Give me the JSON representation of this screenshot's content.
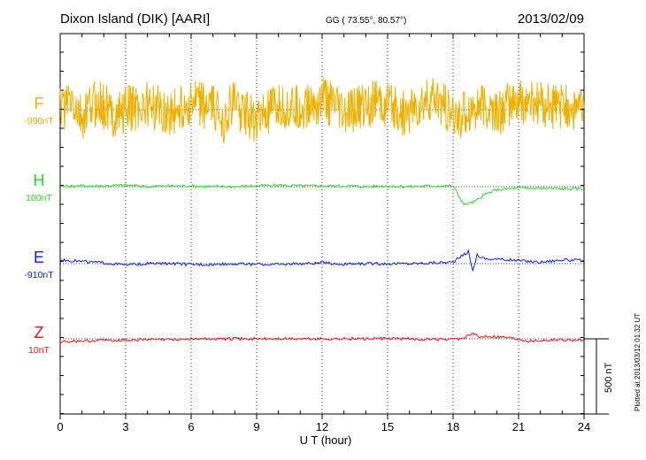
{
  "header": {
    "station": "Dixon Island (DIK)  [AARI]",
    "coords": "GG ( 73.55°,  80.57°)",
    "date": "2013/02/09"
  },
  "side_note": "Plotted at 2013/03/12 01:32 UT",
  "chart_data": {
    "type": "line",
    "title": "Dixon Island (DIK)  [AARI]",
    "xlabel": "U T (hour)",
    "xlim": [
      0,
      24
    ],
    "xticks": [
      "0",
      "3",
      "6",
      "9",
      "12",
      "15",
      "18",
      "21",
      "24"
    ],
    "grid": "dotted vertical lines every 3 hours; dotted baseline per component",
    "scale_bar": {
      "label": "500 nT",
      "value_nT": 500
    },
    "series": [
      {
        "name": "F",
        "baseline_label": "-990nT",
        "color": "#f0b000",
        "x": [
          0,
          0.5,
          1,
          1.5,
          2,
          2.5,
          3,
          4,
          5,
          6,
          7,
          7.5,
          8,
          8.5,
          9,
          10,
          11,
          12,
          12.5,
          13,
          14,
          15,
          16,
          17,
          17.5,
          18,
          19,
          20,
          21,
          22,
          23,
          24
        ],
        "y": [
          0,
          60,
          -80,
          50,
          20,
          -40,
          10,
          30,
          -20,
          40,
          10,
          -60,
          50,
          -30,
          -70,
          20,
          10,
          60,
          40,
          -40,
          50,
          20,
          -30,
          60,
          40,
          -60,
          30,
          -20,
          50,
          40,
          20,
          10
        ],
        "y_unit": "nT relative to baseline"
      },
      {
        "name": "H",
        "baseline_label": "100nT",
        "color": "#22dd22",
        "x": [
          0,
          1,
          2,
          3,
          4,
          5,
          6,
          7,
          8,
          9,
          10,
          11,
          12,
          13,
          14,
          15,
          16,
          17,
          18,
          18.5,
          19,
          19.5,
          20,
          20.5,
          21,
          22,
          23,
          24
        ],
        "y": [
          0,
          5,
          5,
          10,
          0,
          5,
          5,
          0,
          0,
          5,
          10,
          5,
          5,
          5,
          0,
          5,
          0,
          5,
          5,
          -120,
          -100,
          -50,
          -20,
          -15,
          -10,
          -10,
          -15,
          -15
        ],
        "y_unit": "nT relative to baseline"
      },
      {
        "name": "E",
        "baseline_label": "-910nT",
        "color": "#0022dd",
        "x": [
          0,
          1,
          2,
          3,
          4,
          5,
          6,
          7,
          8,
          9,
          10,
          11,
          12,
          13,
          14,
          15,
          16,
          17,
          18,
          18.7,
          18.9,
          19.1,
          19.3,
          19.6,
          20,
          21,
          22,
          23,
          24
        ],
        "y": [
          25,
          15,
          5,
          -10,
          0,
          0,
          -5,
          -5,
          0,
          -5,
          -5,
          0,
          5,
          -5,
          0,
          0,
          0,
          5,
          10,
          80,
          -50,
          60,
          40,
          30,
          30,
          20,
          10,
          25,
          20
        ],
        "y_unit": "nT relative to baseline"
      },
      {
        "name": "Z",
        "baseline_label": "10nT",
        "color": "#ee1111",
        "x": [
          0,
          1,
          2,
          3,
          4,
          5,
          6,
          7,
          8,
          9,
          10,
          11,
          12,
          13,
          14,
          15,
          16,
          17,
          18,
          18.5,
          18.9,
          19.2,
          19.5,
          20,
          20.5,
          21,
          21.5,
          22,
          23,
          24
        ],
        "y": [
          -20,
          -15,
          -10,
          -8,
          -5,
          -5,
          0,
          0,
          0,
          0,
          0,
          0,
          0,
          0,
          0,
          0,
          0,
          -5,
          -5,
          5,
          35,
          10,
          20,
          15,
          10,
          0,
          -15,
          -10,
          -5,
          -10
        ],
        "y_unit": "nT relative to baseline"
      }
    ]
  }
}
